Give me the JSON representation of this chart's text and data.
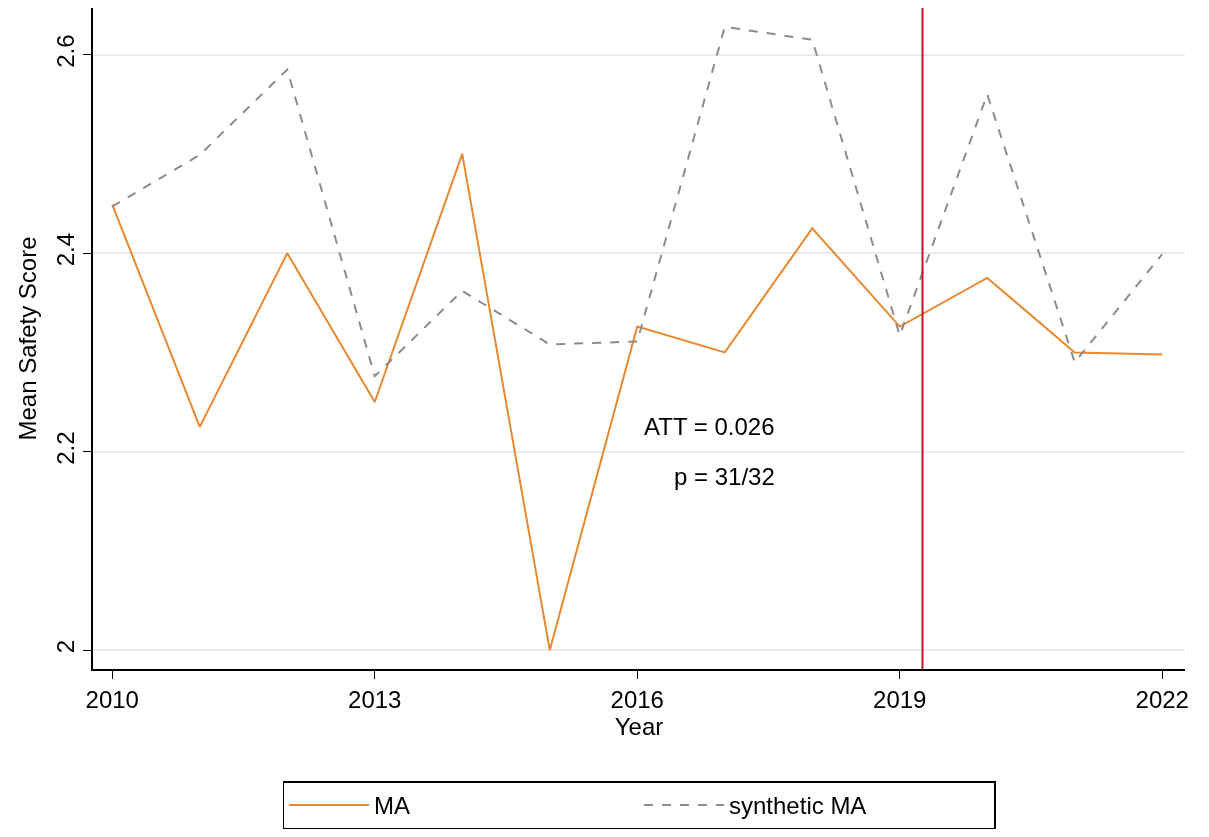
{
  "chart_data": {
    "type": "line",
    "xlabel": "Year",
    "ylabel": "Mean Safety Score",
    "x": [
      2010,
      2011,
      2012,
      2013,
      2014,
      2015,
      2016,
      2017,
      2018,
      2019,
      2020,
      2021,
      2022
    ],
    "series": [
      {
        "name": "MA",
        "color": "#e8892f",
        "line_style": "solid",
        "values": [
          2.449,
          2.225,
          2.4,
          2.25,
          2.5,
          2.0,
          2.326,
          2.3,
          2.425,
          2.326,
          2.375,
          2.3,
          2.298
        ]
      },
      {
        "name": "synthetic MA",
        "color": "#8c8c8c",
        "line_style": "dashed",
        "values": [
          2.447,
          2.499,
          2.585,
          2.276,
          2.362,
          2.308,
          2.311,
          2.628,
          2.615,
          2.317,
          2.56,
          2.29,
          2.399
        ]
      }
    ],
    "xlim": [
      2009.78,
      2022.26
    ],
    "xticks": [
      2010,
      2013,
      2016,
      2019,
      2022
    ],
    "ylim": [
      1.981,
      2.647
    ],
    "yticks": [
      {
        "value": 2.0,
        "label": "2"
      },
      2.2,
      2.4,
      2.6
    ],
    "grid": "y",
    "legend": "bottom",
    "marker": "none",
    "ref_lines": [
      {
        "axis": "x",
        "value": 2019.26,
        "color": "#c8102e",
        "line_style": "solid"
      }
    ],
    "annotations": [
      "ATT = 0.026",
      "p = 31/32"
    ]
  }
}
